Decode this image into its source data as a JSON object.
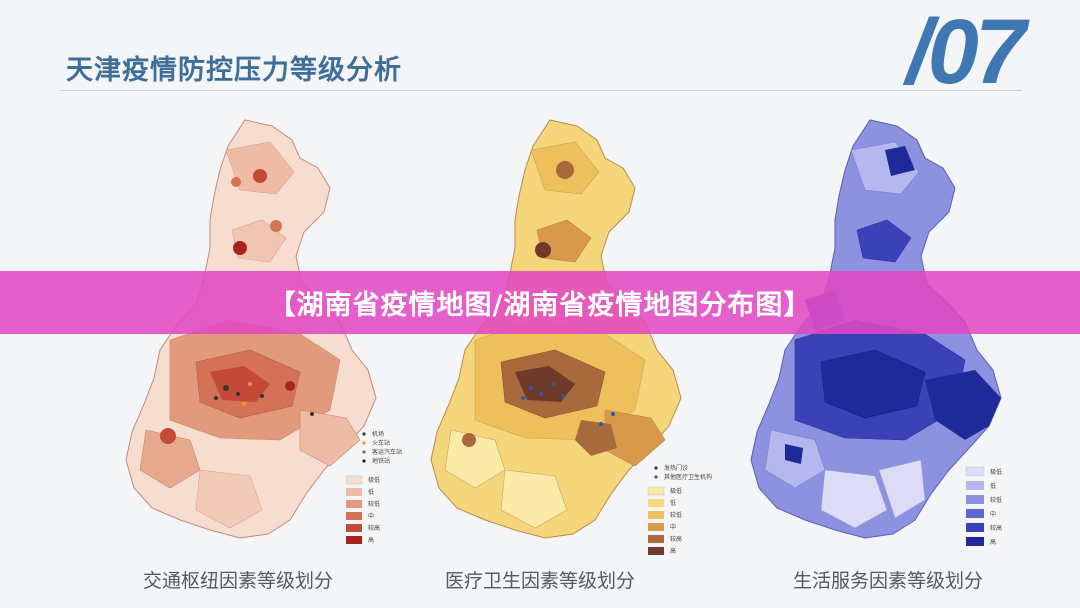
{
  "title": "天津疫情防控压力等级分析",
  "page_number": "/07",
  "banner": "【湖南省疫情地图/湖南省疫情地图分布图】",
  "maps": [
    {
      "caption": "交通枢纽因素等级划分",
      "point_legend": [
        "机场",
        "火车站",
        "客运汽车站",
        "地铁站"
      ],
      "level_legend": [
        "极低",
        "低",
        "较低",
        "中",
        "较高",
        "高"
      ],
      "colors": [
        "#f6ddd0",
        "#eebca4",
        "#e29a7d",
        "#d47257",
        "#c24a36",
        "#a8231e"
      ]
    },
    {
      "caption": "医疗卫生因素等级划分",
      "point_legend": [
        "发热门诊",
        "其他医疗卫生机构"
      ],
      "level_legend": [
        "极低",
        "低",
        "较低",
        "中",
        "较高",
        "高"
      ],
      "colors": [
        "#fbeaa8",
        "#f6d67a",
        "#eec05c",
        "#d89a4a",
        "#a86a3c",
        "#6e3a2a"
      ]
    },
    {
      "caption": "生活服务因素等级划分",
      "point_legend": [],
      "level_legend": [
        "极低",
        "低",
        "较低",
        "中",
        "较高",
        "高"
      ],
      "colors": [
        "#dcdcf6",
        "#b4b8ee",
        "#8c91e0",
        "#6066cf",
        "#3b42b8",
        "#1f2a9a"
      ]
    }
  ]
}
